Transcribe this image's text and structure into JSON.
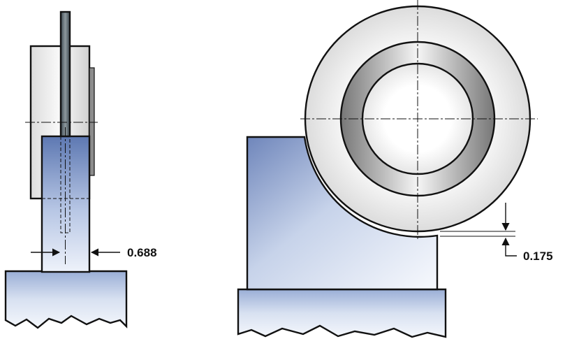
{
  "dimensions": {
    "left_width": "0.688",
    "right_gap": "0.175"
  },
  "colors": {
    "blue_dark": "#7d93c4",
    "blue_light": "#f3f6fb",
    "gray_dark": "#6e6e6e",
    "gray_light": "#eeeeee",
    "outline": "#111111"
  }
}
